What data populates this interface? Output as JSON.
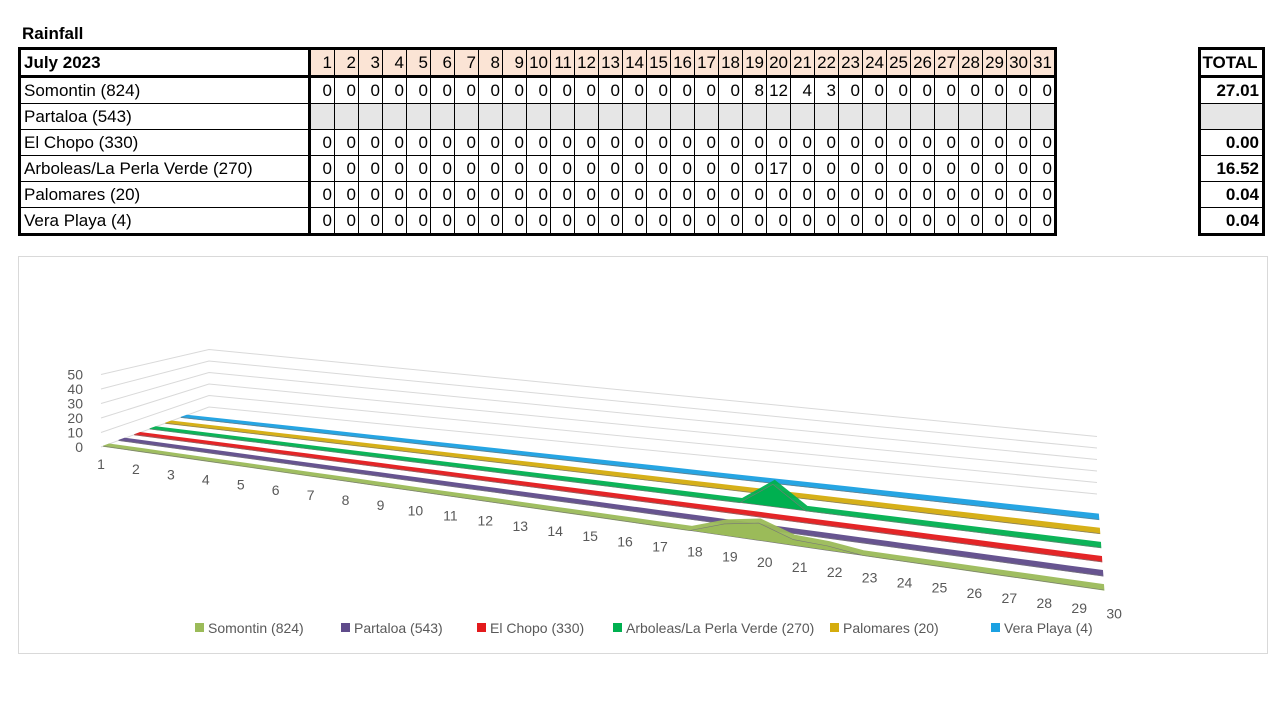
{
  "title": "Rainfall",
  "table": {
    "month_label": "July 2023",
    "days": [
      "1",
      "2",
      "3",
      "4",
      "5",
      "6",
      "7",
      "8",
      "9",
      "10",
      "11",
      "12",
      "13",
      "14",
      "15",
      "16",
      "17",
      "18",
      "19",
      "20",
      "21",
      "22",
      "23",
      "24",
      "25",
      "26",
      "27",
      "28",
      "29",
      "30",
      "31"
    ],
    "total_label": "TOTAL",
    "rows": [
      {
        "name": "Somontin (824)",
        "values": [
          "0",
          "0",
          "0",
          "0",
          "0",
          "0",
          "0",
          "0",
          "0",
          "0",
          "0",
          "0",
          "0",
          "0",
          "0",
          "0",
          "0",
          "0",
          "8",
          "12",
          "4",
          "3",
          "0",
          "0",
          "0",
          "0",
          "0",
          "0",
          "0",
          "0",
          "0"
        ],
        "total": "27.01"
      },
      {
        "name": "Partaloa (543)",
        "values": [
          "",
          "",
          "",
          "",
          "",
          "",
          "",
          "",
          "",
          "",
          "",
          "",
          "",
          "",
          "",
          "",
          "",
          "",
          "",
          "",
          "",
          "",
          "",
          "",
          "",
          "",
          "",
          "",
          "",
          "",
          ""
        ],
        "total": ""
      },
      {
        "name": "El Chopo (330)",
        "values": [
          "0",
          "0",
          "0",
          "0",
          "0",
          "0",
          "0",
          "0",
          "0",
          "0",
          "0",
          "0",
          "0",
          "0",
          "0",
          "0",
          "0",
          "0",
          "0",
          "0",
          "0",
          "0",
          "0",
          "0",
          "0",
          "0",
          "0",
          "0",
          "0",
          "0",
          "0"
        ],
        "total": "0.00"
      },
      {
        "name": "Arboleas/La Perla Verde (270)",
        "values": [
          "0",
          "0",
          "0",
          "0",
          "0",
          "0",
          "0",
          "0",
          "0",
          "0",
          "0",
          "0",
          "0",
          "0",
          "0",
          "0",
          "0",
          "0",
          "0",
          "17",
          "0",
          "0",
          "0",
          "0",
          "0",
          "0",
          "0",
          "0",
          "0",
          "0",
          "0"
        ],
        "total": "16.52"
      },
      {
        "name": "Palomares (20)",
        "values": [
          "0",
          "0",
          "0",
          "0",
          "0",
          "0",
          "0",
          "0",
          "0",
          "0",
          "0",
          "0",
          "0",
          "0",
          "0",
          "0",
          "0",
          "0",
          "0",
          "0",
          "0",
          "0",
          "0",
          "0",
          "0",
          "0",
          "0",
          "0",
          "0",
          "0",
          "0"
        ],
        "total": "0.04"
      },
      {
        "name": "Vera Playa (4)",
        "values": [
          "0",
          "0",
          "0",
          "0",
          "0",
          "0",
          "0",
          "0",
          "0",
          "0",
          "0",
          "0",
          "0",
          "0",
          "0",
          "0",
          "0",
          "0",
          "0",
          "0",
          "0",
          "0",
          "0",
          "0",
          "0",
          "0",
          "0",
          "0",
          "0",
          "0",
          "0"
        ],
        "total": "0.04"
      }
    ]
  },
  "chart_data": {
    "type": "area",
    "x": [
      1,
      2,
      3,
      4,
      5,
      6,
      7,
      8,
      9,
      10,
      11,
      12,
      13,
      14,
      15,
      16,
      17,
      18,
      19,
      20,
      21,
      22,
      23,
      24,
      25,
      26,
      27,
      28,
      29,
      30
    ],
    "y_ticks": [
      "0",
      "10",
      "20",
      "30",
      "40",
      "50"
    ],
    "ylim": [
      0,
      50
    ],
    "series": [
      {
        "name": "Somontin (824)",
        "color": "#9bbb59",
        "values": [
          0,
          0,
          0,
          0,
          0,
          0,
          0,
          0,
          0,
          0,
          0,
          0,
          0,
          0,
          0,
          0,
          0,
          0,
          8,
          12,
          4,
          3,
          0,
          0,
          0,
          0,
          0,
          0,
          0,
          0
        ]
      },
      {
        "name": "Partaloa (543)",
        "color": "#5f4b8b",
        "values": [
          0,
          0,
          0,
          0,
          0,
          0,
          0,
          0,
          0,
          0,
          0,
          0,
          0,
          0,
          0,
          0,
          0,
          0,
          0,
          0,
          0,
          0,
          0,
          0,
          0,
          0,
          0,
          0,
          0,
          0
        ]
      },
      {
        "name": "El Chopo (330)",
        "color": "#e31a1c",
        "values": [
          0,
          0,
          0,
          0,
          0,
          0,
          0,
          0,
          0,
          0,
          0,
          0,
          0,
          0,
          0,
          0,
          0,
          0,
          0,
          0,
          0,
          0,
          0,
          0,
          0,
          0,
          0,
          0,
          0,
          0
        ]
      },
      {
        "name": "Arboleas/La Perla Verde (270)",
        "color": "#00b050",
        "values": [
          0,
          0,
          0,
          0,
          0,
          0,
          0,
          0,
          0,
          0,
          0,
          0,
          0,
          0,
          0,
          0,
          0,
          0,
          0,
          17,
          0,
          0,
          0,
          0,
          0,
          0,
          0,
          0,
          0,
          0
        ]
      },
      {
        "name": "Palomares (20)",
        "color": "#d4ac0d",
        "values": [
          0,
          0,
          0,
          0,
          0,
          0,
          0,
          0,
          0,
          0,
          0,
          0,
          0,
          0,
          0,
          0,
          0,
          0,
          0,
          0,
          0,
          0,
          0,
          0,
          0,
          0,
          0,
          0,
          0,
          0
        ]
      },
      {
        "name": "Vera Playa (4)",
        "color": "#1ba1e2",
        "values": [
          0,
          0,
          0,
          0,
          0,
          0,
          0,
          0,
          0,
          0,
          0,
          0,
          0,
          0,
          0,
          0,
          0,
          0,
          0,
          0,
          0,
          0,
          0,
          0,
          0,
          0,
          0,
          0,
          0,
          0
        ]
      }
    ],
    "legend_position": "bottom"
  }
}
